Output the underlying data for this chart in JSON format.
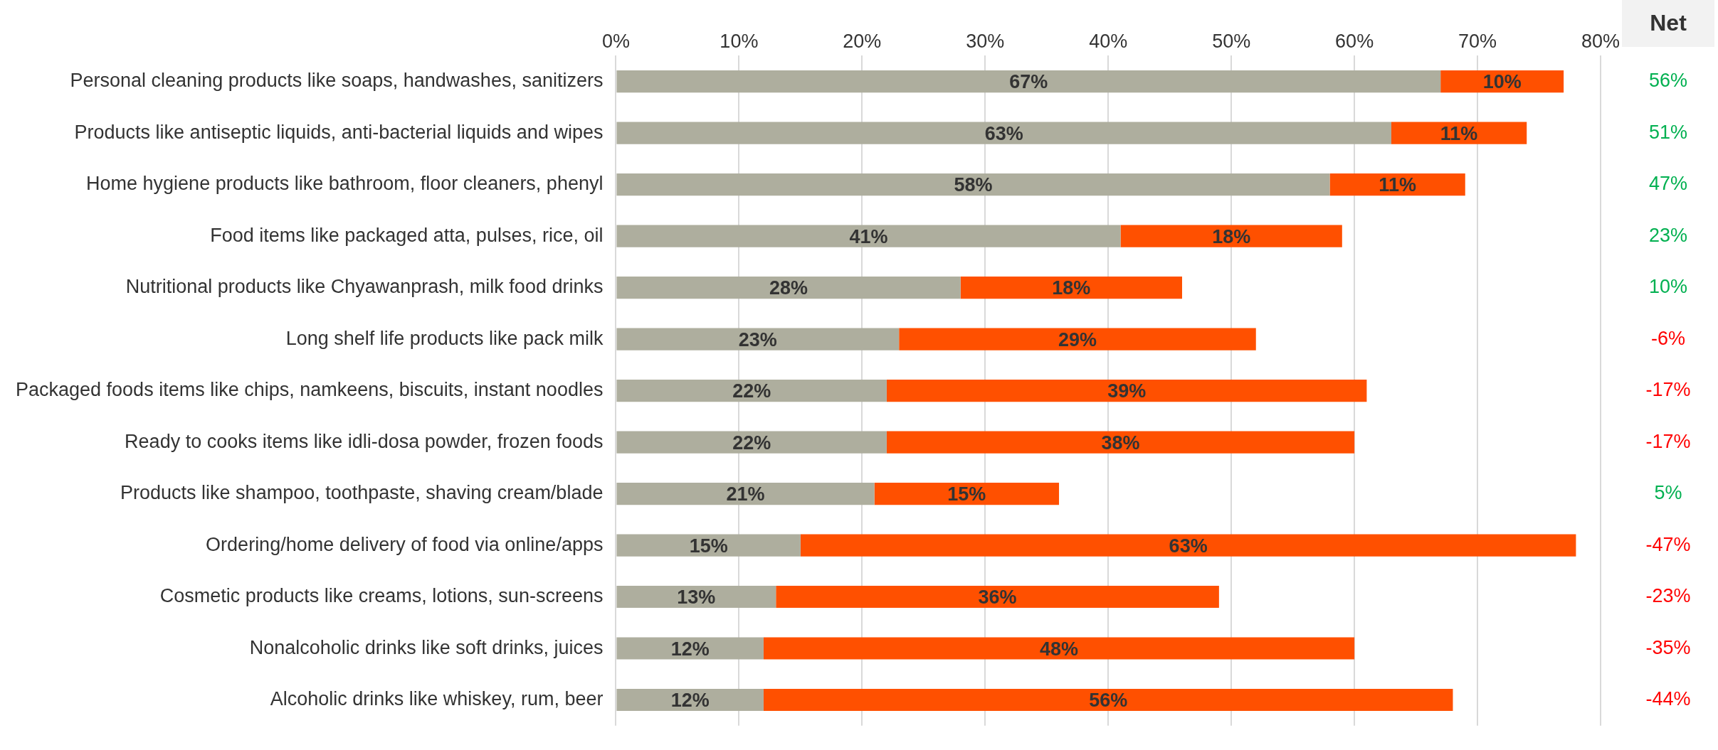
{
  "chart_data": {
    "type": "bar",
    "orientation": "horizontal",
    "stacked": true,
    "legend": false,
    "grid": "x",
    "categories": [
      "Personal cleaning products like soaps, handwashes, sanitizers",
      "Products like antiseptic liquids, anti-bacterial liquids and wipes",
      "Home hygiene products like bathroom, floor cleaners, phenyl",
      "Food items like packaged atta, pulses, rice, oil",
      "Nutritional products like Chyawanprash, milk food drinks",
      "Long shelf life products like pack milk",
      "Packaged foods items like chips, namkeens, biscuits, instant noodles",
      "Ready to cooks items like idli-dosa powder, frozen foods",
      "Products like shampoo, toothpaste, shaving cream/blade",
      "Ordering/home delivery of food via online/apps",
      "Cosmetic products like creams, lotions, sun-screens",
      "Nonalcoholic drinks like soft drinks, juices",
      "Alcoholic drinks like whiskey, rum, beer"
    ],
    "series": [
      {
        "color": "#aeae9e",
        "values": [
          67,
          63,
          58,
          41,
          28,
          23,
          22,
          22,
          21,
          15,
          13,
          12,
          12
        ],
        "value_labels": [
          "67%",
          "63%",
          "58%",
          "41%",
          "28%",
          "23%",
          "22%",
          "22%",
          "21%",
          "15%",
          "13%",
          "12%",
          "12%"
        ]
      },
      {
        "color": "#ff5000",
        "values": [
          10,
          11,
          11,
          18,
          18,
          29,
          39,
          38,
          15,
          63,
          36,
          48,
          56
        ],
        "value_labels": [
          "10%",
          "11%",
          "11%",
          "18%",
          "18%",
          "29%",
          "39%",
          "38%",
          "15%",
          "63%",
          "36%",
          "48%",
          "56%"
        ]
      }
    ],
    "xlim": [
      0,
      80
    ],
    "xticks": [
      {
        "value": 0,
        "label": "0%"
      },
      {
        "value": 10,
        "label": "10%"
      },
      {
        "value": 20,
        "label": "20%"
      },
      {
        "value": 30,
        "label": "30%"
      },
      {
        "value": 40,
        "label": "40%"
      },
      {
        "value": 50,
        "label": "50%"
      },
      {
        "value": 60,
        "label": "60%"
      },
      {
        "value": 70,
        "label": "70%"
      },
      {
        "value": 80,
        "label": "80%"
      }
    ],
    "annotations": [
      "Net",
      "56%",
      "51%",
      "47%",
      "23%",
      "10%",
      "-6%",
      "-17%",
      "-17%",
      "5%",
      "-47%",
      "-23%",
      "-35%",
      "-44%"
    ]
  }
}
